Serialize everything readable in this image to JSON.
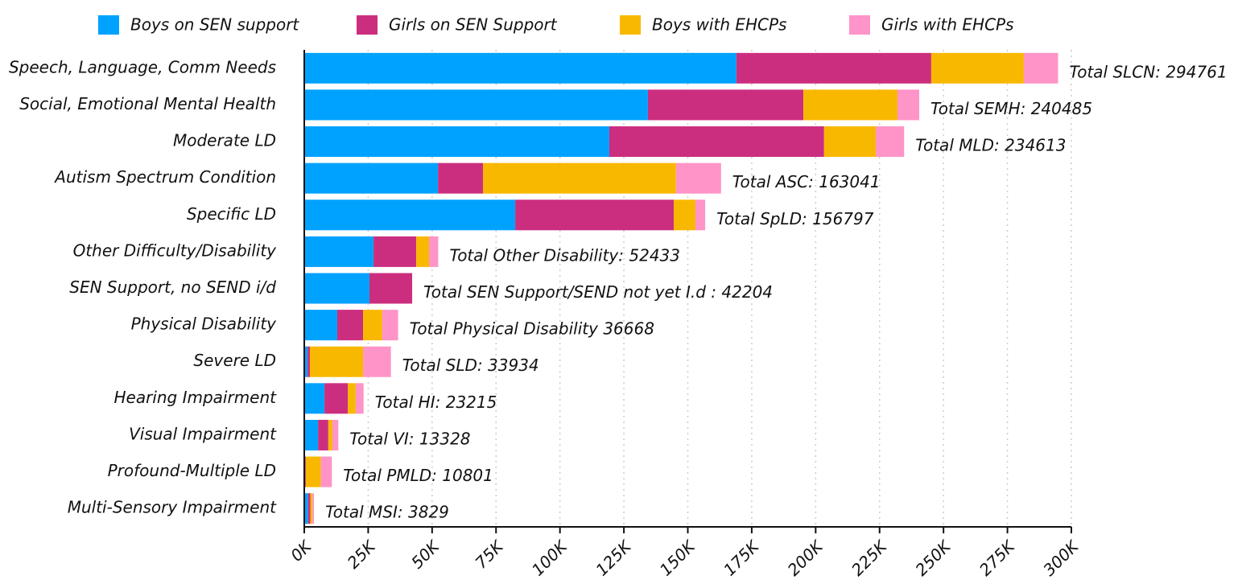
{
  "chart_data": {
    "type": "bar",
    "orientation": "horizontal",
    "stacked": true,
    "categories": [
      "Speech, Language, Comm Needs",
      "Social, Emotional Mental Health",
      "Moderate LD",
      "Autism Spectrum Condition",
      "Specific LD",
      "Other Difficulty/Disability",
      "SEN Support, no SEND i/d",
      "Physical Disability",
      "Severe LD",
      "Hearing Impairment",
      "Visual Impairment",
      "Profound-Multiple LD",
      "Multi-Sensory Impairment"
    ],
    "series": [
      {
        "name": "Boys on SEN support",
        "color": "#00a2ff",
        "values": [
          169000,
          134400,
          119300,
          52300,
          82500,
          27100,
          25500,
          12900,
          1300,
          7900,
          5400,
          300,
          1500
        ]
      },
      {
        "name": "Girls on SEN Support",
        "color": "#cc2e7f",
        "values": [
          76200,
          60800,
          84000,
          17600,
          62000,
          16700,
          16700,
          10100,
          900,
          9100,
          4000,
          300,
          900
        ]
      },
      {
        "name": "Boys with EHCPs",
        "color": "#f9b800",
        "values": [
          36200,
          36800,
          20200,
          75500,
          8500,
          5000,
          0,
          7500,
          20800,
          3100,
          1600,
          5900,
          800
        ]
      },
      {
        "name": "Girls with EHCPs",
        "color": "#ff94c8",
        "values": [
          13400,
          8500,
          11100,
          17600,
          3800,
          3600,
          0,
          6200,
          10900,
          3100,
          2300,
          4300,
          600
        ]
      }
    ],
    "total_labels": [
      "Total SLCN: 294761",
      "Total SEMH: 240485",
      "Total MLD: 234613",
      "Total ASC: 163041",
      "Total SpLD: 156797",
      "Total Other Disability: 52433",
      "Total SEN Support/SEND not yet I.d : 42204",
      "Total Physical Disability 36668",
      "Total SLD: 33934",
      "Total HI: 23215",
      "Total VI: 13328",
      "Total PMLD: 10801",
      "Total MSI: 3829"
    ],
    "xlim": [
      0,
      300000
    ],
    "xticks": [
      {
        "value": 0,
        "label": "0K"
      },
      {
        "value": 25000,
        "label": "25K"
      },
      {
        "value": 50000,
        "label": "50K"
      },
      {
        "value": 75000,
        "label": "75K"
      },
      {
        "value": 100000,
        "label": "100K"
      },
      {
        "value": 125000,
        "label": "125K"
      },
      {
        "value": 150000,
        "label": "150K"
      },
      {
        "value": 175000,
        "label": "175K"
      },
      {
        "value": 200000,
        "label": "200K"
      },
      {
        "value": 225000,
        "label": "225K"
      },
      {
        "value": 250000,
        "label": "250K"
      },
      {
        "value": 275000,
        "label": "275K"
      },
      {
        "value": 300000,
        "label": "300K"
      }
    ],
    "grid": true,
    "legend": "top"
  }
}
